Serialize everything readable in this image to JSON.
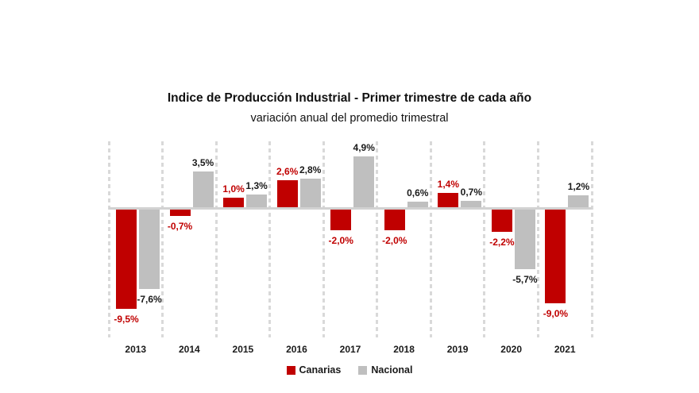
{
  "chart_data": {
    "type": "bar",
    "title": "Indice de Producción Industrial - Primer trimestre de cada año",
    "subtitle": "variación anual del promedio trimestral",
    "categories": [
      "2013",
      "2014",
      "2015",
      "2016",
      "2017",
      "2018",
      "2019",
      "2020",
      "2021"
    ],
    "series": [
      {
        "name": "Canarias",
        "color": "#c00000",
        "label_color": "#c00000",
        "values": [
          -9.5,
          -0.7,
          1.0,
          2.6,
          -2.0,
          -2.0,
          1.4,
          -2.2,
          -9.0
        ],
        "labels": [
          "-9,5%",
          "-0,7%",
          "1,0%",
          "2,6%",
          "-2,0%",
          "-2,0%",
          "1,4%",
          "-2,2%",
          "-9,0%"
        ]
      },
      {
        "name": "Nacional",
        "color": "#bfbfbf",
        "label_color": "#1a1a1a",
        "values": [
          -7.6,
          3.5,
          1.3,
          2.8,
          4.9,
          0.6,
          0.7,
          -5.7,
          1.2
        ],
        "labels": [
          "-7,6%",
          "3,5%",
          "1,3%",
          "2,8%",
          "4,9%",
          "0,6%",
          "0,7%",
          "-5,7%",
          "1,2%"
        ]
      }
    ],
    "ylim": [
      -12.3,
      6.3
    ],
    "grid": "vertical-dashed",
    "legend_position": "bottom",
    "axis_colors": {
      "gridline": "#d9d9d9",
      "zero_line": "#d2d2d2"
    }
  }
}
